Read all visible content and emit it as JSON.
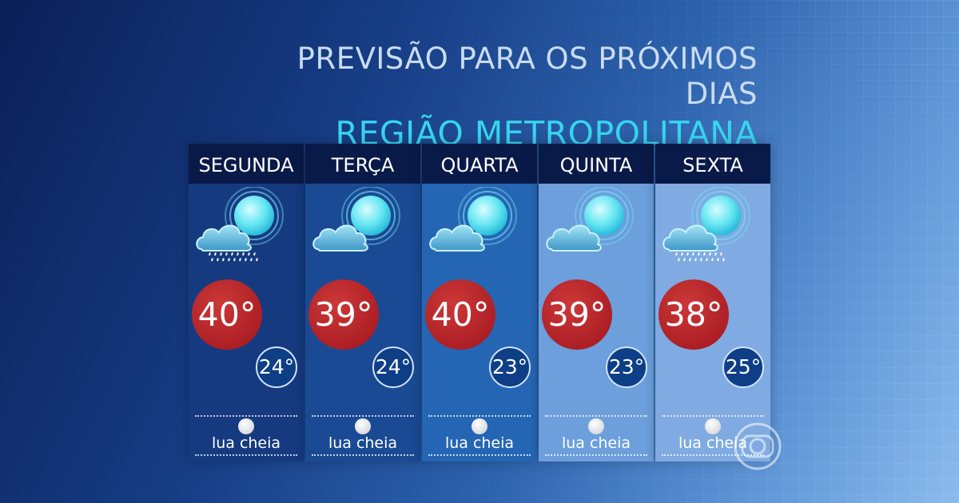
{
  "title_line1": "PREVISÃO PARA OS PRÓXIMOS DIAS",
  "title_line2": "REGIÃO METROPOLITANA",
  "days": [
    {
      "day": "SEGUNDA",
      "max": "40°",
      "min": "24°",
      "moon": "lua cheia",
      "rain": true
    },
    {
      "day": "TERÇA",
      "max": "39°",
      "min": "24°",
      "moon": "lua cheia",
      "rain": false
    },
    {
      "day": "QUARTA",
      "max": "40°",
      "min": "23°",
      "moon": "lua cheia",
      "rain": false
    },
    {
      "day": "QUINTA",
      "max": "39°",
      "min": "23°",
      "moon": "lua cheia",
      "rain": false
    },
    {
      "day": "SEXTA",
      "max": "38°",
      "min": "25°",
      "moon": "lua cheia",
      "rain": true
    }
  ],
  "colors": {
    "card_bg": [
      "#163a80",
      "#1a4a94",
      "#2566b4",
      "#6c9fdc",
      "#80abe2"
    ],
    "max_badge": "#ab1e24",
    "min_badge": "#0d3e86",
    "header_bg": "#0a1a48",
    "title_accent": "#37d6ee"
  },
  "icons": {
    "weather": "sun-behind-cloud-icon",
    "rain": "rain-icon",
    "moon": "full-moon-icon",
    "logo": "globo-logo-icon"
  }
}
